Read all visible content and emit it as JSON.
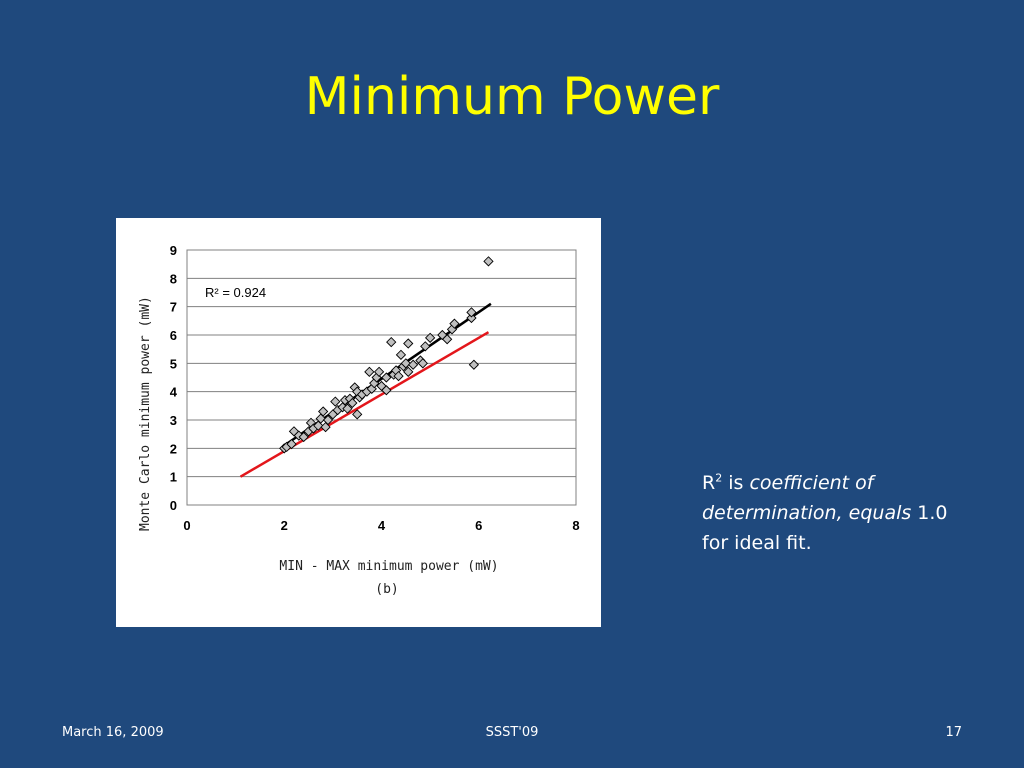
{
  "slide": {
    "title": "Minimum Power",
    "note_r": "R",
    "note_sup": "2",
    "note_is": " is ",
    "note_italic": "coefficient of determination, equals",
    "note_rest": " 1.0 for ideal fit."
  },
  "footer": {
    "date": "March 16, 2009",
    "conference": "SSST'09",
    "page_number": "17"
  },
  "colors": {
    "background": "#1f497d",
    "title": "#ffff00",
    "marker_fill": "#c0c0c0",
    "fit_line": "#000000",
    "ideal_line": "#e3161b"
  },
  "chart_data": {
    "type": "scatter",
    "xlabel": "MIN - MAX minimum power (mW)",
    "xlabel_sub": "(b)",
    "ylabel": "Monte Carlo minimum power (mW)",
    "xlim": [
      0,
      8
    ],
    "ylim": [
      0,
      9
    ],
    "xticks": [
      "0",
      "2",
      "4",
      "6",
      "8"
    ],
    "yticks": [
      "0",
      "1",
      "2",
      "3",
      "4",
      "5",
      "6",
      "7",
      "8",
      "9"
    ],
    "grid": "horizontal",
    "annotation": "R² = 0.924",
    "series": [
      {
        "points": [
          [
            2.0,
            2.0
          ],
          [
            2.05,
            2.05
          ],
          [
            2.15,
            2.15
          ],
          [
            2.2,
            2.6
          ],
          [
            2.3,
            2.45
          ],
          [
            2.4,
            2.4
          ],
          [
            2.5,
            2.6
          ],
          [
            2.55,
            2.9
          ],
          [
            2.6,
            2.7
          ],
          [
            2.7,
            2.8
          ],
          [
            2.75,
            3.05
          ],
          [
            2.8,
            3.3
          ],
          [
            2.85,
            2.75
          ],
          [
            2.9,
            3.0
          ],
          [
            3.0,
            3.2
          ],
          [
            3.05,
            3.65
          ],
          [
            3.1,
            3.35
          ],
          [
            3.2,
            3.45
          ],
          [
            3.25,
            3.7
          ],
          [
            3.3,
            3.4
          ],
          [
            3.35,
            3.75
          ],
          [
            3.4,
            3.6
          ],
          [
            3.45,
            4.15
          ],
          [
            3.5,
            3.2
          ],
          [
            3.5,
            4.0
          ],
          [
            3.55,
            3.8
          ],
          [
            3.6,
            3.9
          ],
          [
            3.7,
            4.0
          ],
          [
            3.75,
            4.7
          ],
          [
            3.8,
            4.1
          ],
          [
            3.85,
            4.3
          ],
          [
            3.9,
            4.5
          ],
          [
            3.95,
            4.7
          ],
          [
            4.0,
            4.2
          ],
          [
            4.1,
            4.05
          ],
          [
            4.1,
            4.5
          ],
          [
            4.2,
            5.75
          ],
          [
            4.25,
            4.6
          ],
          [
            4.3,
            4.75
          ],
          [
            4.35,
            4.55
          ],
          [
            4.4,
            5.3
          ],
          [
            4.45,
            4.9
          ],
          [
            4.5,
            5.0
          ],
          [
            4.55,
            4.7
          ],
          [
            4.55,
            5.7
          ],
          [
            4.65,
            4.95
          ],
          [
            4.8,
            5.1
          ],
          [
            4.85,
            5.0
          ],
          [
            4.9,
            5.6
          ],
          [
            5.0,
            5.9
          ],
          [
            5.25,
            6.0
          ],
          [
            5.35,
            5.85
          ],
          [
            5.45,
            6.2
          ],
          [
            5.5,
            6.4
          ],
          [
            5.85,
            6.6
          ],
          [
            5.85,
            6.8
          ],
          [
            5.9,
            4.95
          ],
          [
            6.2,
            8.6
          ]
        ]
      }
    ],
    "lines": [
      {
        "x": [
          2.0,
          6.25
        ],
        "y": [
          2.1,
          7.1
        ],
        "color": "#000000"
      },
      {
        "x": [
          1.1,
          6.2
        ],
        "y": [
          1.0,
          6.1
        ],
        "color": "#e3161b"
      }
    ]
  }
}
